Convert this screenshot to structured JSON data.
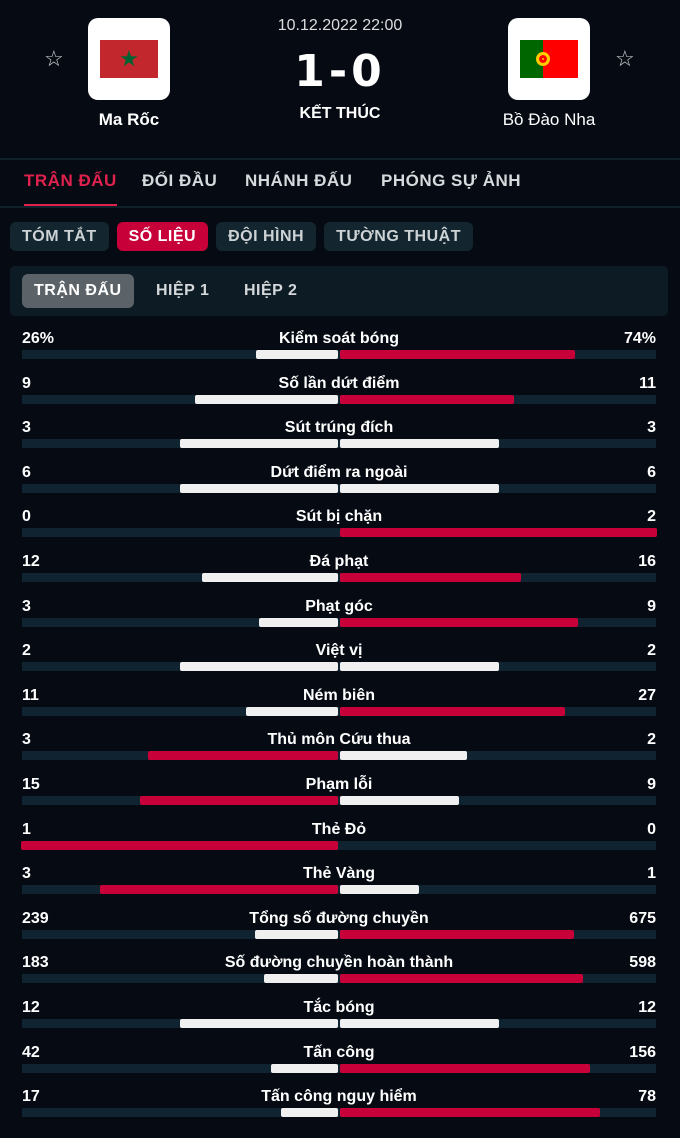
{
  "match": {
    "datetime": "10.12.2022 22:00",
    "score": "1-0",
    "status": "KẾT THÚC",
    "home": {
      "name": "Ma Rốc",
      "flag": "morocco-flag"
    },
    "away": {
      "name": "Bồ Đào Nha",
      "flag": "portugal-flag"
    }
  },
  "tabs": [
    "TRẬN ĐẤU",
    "ĐỐI ĐẦU",
    "NHÁNH ĐẤU",
    "PHÓNG SỰ ẢNH"
  ],
  "pills": [
    "TÓM TẮT",
    "SỐ LIỆU",
    "ĐỘI HÌNH",
    "TƯỜNG THUẬT"
  ],
  "periods": [
    "TRẬN ĐẤU",
    "HIỆP 1",
    "HIỆP 2"
  ],
  "colors": {
    "accent": "#e0214d",
    "bar_lead": "#c8003a",
    "bar_other": "#f0f0f0",
    "track": "#0f2330"
  },
  "stats": [
    {
      "label": "Kiểm soát bóng",
      "home": "26%",
      "away": "74%",
      "h": 26,
      "a": 74
    },
    {
      "label": "Số lần dứt điểm",
      "home": "9",
      "away": "11",
      "h": 9,
      "a": 11
    },
    {
      "label": "Sút trúng đích",
      "home": "3",
      "away": "3",
      "h": 3,
      "a": 3
    },
    {
      "label": "Dứt điểm ra ngoài",
      "home": "6",
      "away": "6",
      "h": 6,
      "a": 6
    },
    {
      "label": "Sút bị chặn",
      "home": "0",
      "away": "2",
      "h": 0,
      "a": 2
    },
    {
      "label": "Đá phạt",
      "home": "12",
      "away": "16",
      "h": 12,
      "a": 16
    },
    {
      "label": "Phạt góc",
      "home": "3",
      "away": "9",
      "h": 3,
      "a": 9
    },
    {
      "label": "Việt vị",
      "home": "2",
      "away": "2",
      "h": 2,
      "a": 2
    },
    {
      "label": "Ném biên",
      "home": "11",
      "away": "27",
      "h": 11,
      "a": 27
    },
    {
      "label": "Thủ môn Cứu thua",
      "home": "3",
      "away": "2",
      "h": 3,
      "a": 2
    },
    {
      "label": "Phạm lỗi",
      "home": "15",
      "away": "9",
      "h": 15,
      "a": 9
    },
    {
      "label": "Thẻ Đỏ",
      "home": "1",
      "away": "0",
      "h": 1,
      "a": 0
    },
    {
      "label": "Thẻ Vàng",
      "home": "3",
      "away": "1",
      "h": 3,
      "a": 1
    },
    {
      "label": "Tổng số đường chuyền",
      "home": "239",
      "away": "675",
      "h": 239,
      "a": 675
    },
    {
      "label": "Số đường chuyền hoàn thành",
      "home": "183",
      "away": "598",
      "h": 183,
      "a": 598
    },
    {
      "label": "Tắc bóng",
      "home": "12",
      "away": "12",
      "h": 12,
      "a": 12
    },
    {
      "label": "Tấn công",
      "home": "42",
      "away": "156",
      "h": 42,
      "a": 156
    },
    {
      "label": "Tấn công nguy hiểm",
      "home": "17",
      "away": "78",
      "h": 17,
      "a": 78
    }
  ]
}
